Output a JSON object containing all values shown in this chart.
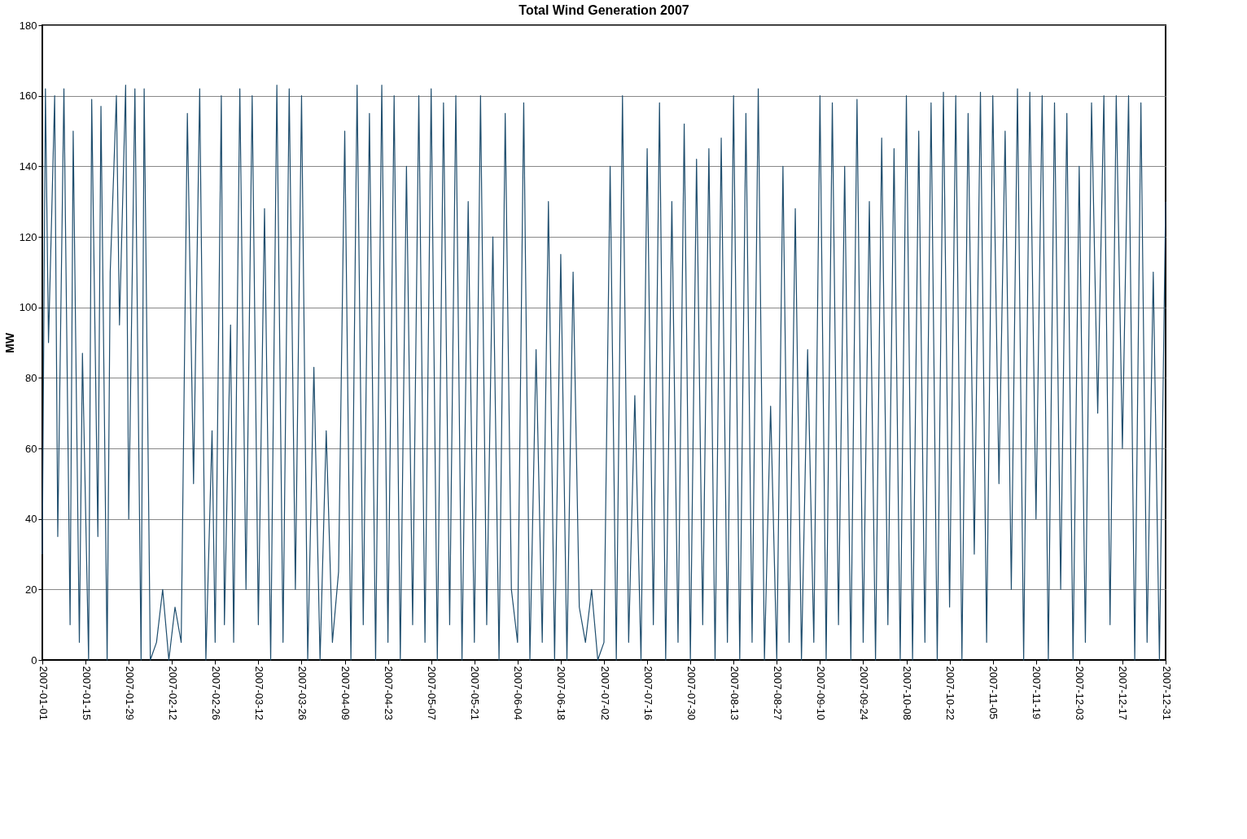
{
  "chart_data": {
    "type": "line",
    "title": "Total Wind Generation 2007",
    "ylabel": "MW",
    "x": [
      "2007-01-01",
      "2007-01-02",
      "2007-01-03",
      "2007-01-05",
      "2007-01-06",
      "2007-01-08",
      "2007-01-10",
      "2007-01-11",
      "2007-01-13",
      "2007-01-14",
      "2007-01-16",
      "2007-01-17",
      "2007-01-19",
      "2007-01-20",
      "2007-01-22",
      "2007-01-23",
      "2007-01-25",
      "2007-01-26",
      "2007-01-28",
      "2007-01-29",
      "2007-01-31",
      "2007-02-02",
      "2007-02-03",
      "2007-02-05",
      "2007-02-07",
      "2007-02-09",
      "2007-02-11",
      "2007-02-13",
      "2007-02-15",
      "2007-02-17",
      "2007-02-19",
      "2007-02-21",
      "2007-02-23",
      "2007-02-25",
      "2007-02-26",
      "2007-02-28",
      "2007-03-01",
      "2007-03-03",
      "2007-03-04",
      "2007-03-06",
      "2007-03-08",
      "2007-03-10",
      "2007-03-12",
      "2007-03-14",
      "2007-03-16",
      "2007-03-18",
      "2007-03-20",
      "2007-03-22",
      "2007-03-24",
      "2007-03-26",
      "2007-03-28",
      "2007-03-30",
      "2007-04-01",
      "2007-04-03",
      "2007-04-05",
      "2007-04-07",
      "2007-04-09",
      "2007-04-11",
      "2007-04-13",
      "2007-04-15",
      "2007-04-17",
      "2007-04-19",
      "2007-04-21",
      "2007-04-23",
      "2007-04-25",
      "2007-04-27",
      "2007-04-29",
      "2007-05-01",
      "2007-05-03",
      "2007-05-05",
      "2007-05-07",
      "2007-05-09",
      "2007-05-11",
      "2007-05-13",
      "2007-05-15",
      "2007-05-17",
      "2007-05-19",
      "2007-05-21",
      "2007-05-23",
      "2007-05-25",
      "2007-05-27",
      "2007-05-29",
      "2007-05-31",
      "2007-06-02",
      "2007-06-04",
      "2007-06-06",
      "2007-06-08",
      "2007-06-10",
      "2007-06-12",
      "2007-06-14",
      "2007-06-16",
      "2007-06-18",
      "2007-06-20",
      "2007-06-22",
      "2007-06-24",
      "2007-06-26",
      "2007-06-28",
      "2007-06-30",
      "2007-07-02",
      "2007-07-04",
      "2007-07-06",
      "2007-07-08",
      "2007-07-10",
      "2007-07-12",
      "2007-07-14",
      "2007-07-16",
      "2007-07-18",
      "2007-07-20",
      "2007-07-22",
      "2007-07-24",
      "2007-07-26",
      "2007-07-28",
      "2007-07-30",
      "2007-08-01",
      "2007-08-03",
      "2007-08-05",
      "2007-08-07",
      "2007-08-09",
      "2007-08-11",
      "2007-08-13",
      "2007-08-15",
      "2007-08-17",
      "2007-08-19",
      "2007-08-21",
      "2007-08-23",
      "2007-08-25",
      "2007-08-27",
      "2007-08-29",
      "2007-08-31",
      "2007-09-02",
      "2007-09-04",
      "2007-09-06",
      "2007-09-08",
      "2007-09-10",
      "2007-09-12",
      "2007-09-14",
      "2007-09-16",
      "2007-09-18",
      "2007-09-20",
      "2007-09-22",
      "2007-09-24",
      "2007-09-26",
      "2007-09-28",
      "2007-09-30",
      "2007-10-02",
      "2007-10-04",
      "2007-10-06",
      "2007-10-08",
      "2007-10-10",
      "2007-10-12",
      "2007-10-14",
      "2007-10-16",
      "2007-10-18",
      "2007-10-20",
      "2007-10-22",
      "2007-10-24",
      "2007-10-26",
      "2007-10-28",
      "2007-10-30",
      "2007-11-01",
      "2007-11-03",
      "2007-11-05",
      "2007-11-07",
      "2007-11-09",
      "2007-11-11",
      "2007-11-13",
      "2007-11-15",
      "2007-11-17",
      "2007-11-19",
      "2007-11-21",
      "2007-11-23",
      "2007-11-25",
      "2007-11-27",
      "2007-11-29",
      "2007-12-01",
      "2007-12-03",
      "2007-12-05",
      "2007-12-07",
      "2007-12-09",
      "2007-12-11",
      "2007-12-13",
      "2007-12-15",
      "2007-12-17",
      "2007-12-19",
      "2007-12-21",
      "2007-12-23",
      "2007-12-25",
      "2007-12-27",
      "2007-12-29",
      "2007-12-31"
    ],
    "series": [
      {
        "color": "#1f4e6e",
        "values": [
          30,
          162,
          90,
          160,
          35,
          162,
          10,
          150,
          5,
          87,
          0,
          159,
          35,
          157,
          0,
          110,
          160,
          95,
          163,
          40,
          162,
          0,
          162,
          0,
          5,
          20,
          0,
          15,
          5,
          155,
          50,
          162,
          0,
          65,
          5,
          160,
          10,
          95,
          5,
          162,
          20,
          160,
          10,
          128,
          0,
          163,
          5,
          162,
          20,
          160,
          0,
          83,
          0,
          65,
          5,
          25,
          150,
          0,
          163,
          10,
          155,
          0,
          163,
          5,
          160,
          0,
          140,
          10,
          160,
          5,
          162,
          0,
          158,
          10,
          160,
          0,
          130,
          5,
          160,
          10,
          120,
          0,
          155,
          20,
          5,
          158,
          0,
          88,
          5,
          130,
          0,
          115,
          0,
          110,
          15,
          5,
          20,
          0,
          5,
          140,
          0,
          160,
          5,
          75,
          0,
          145,
          10,
          158,
          0,
          130,
          5,
          152,
          0,
          142,
          10,
          145,
          0,
          148,
          5,
          160,
          0,
          155,
          5,
          162,
          0,
          72,
          0,
          140,
          5,
          128,
          0,
          88,
          5,
          160,
          0,
          158,
          10,
          140,
          0,
          159,
          5,
          130,
          0,
          148,
          10,
          145,
          0,
          160,
          0,
          150,
          5,
          158,
          0,
          161,
          15,
          160,
          0,
          155,
          30,
          161,
          5,
          160,
          50,
          150,
          20,
          162,
          0,
          161,
          40,
          160,
          0,
          158,
          20,
          155,
          0,
          140,
          5,
          158,
          70,
          160,
          10,
          160,
          60,
          160,
          0,
          158,
          5,
          110,
          0,
          130
        ]
      }
    ],
    "xlim": [
      "2007-01-01",
      "2007-12-31"
    ],
    "xticks": [
      "2007-01-01",
      "2007-01-15",
      "2007-01-29",
      "2007-02-12",
      "2007-02-26",
      "2007-03-12",
      "2007-03-26",
      "2007-04-09",
      "2007-04-23",
      "2007-05-07",
      "2007-05-21",
      "2007-06-04",
      "2007-06-18",
      "2007-07-02",
      "2007-07-16",
      "2007-07-30",
      "2007-08-13",
      "2007-08-27",
      "2007-09-10",
      "2007-09-24",
      "2007-10-08",
      "2007-10-22",
      "2007-11-05",
      "2007-11-19",
      "2007-12-03",
      "2007-12-17",
      "2007-12-31"
    ],
    "ylim": [
      0,
      180
    ],
    "yticks": [
      0,
      20,
      40,
      60,
      80,
      100,
      120,
      140,
      160,
      180
    ],
    "grid": "y",
    "marker": "none",
    "line_style": "solid"
  }
}
